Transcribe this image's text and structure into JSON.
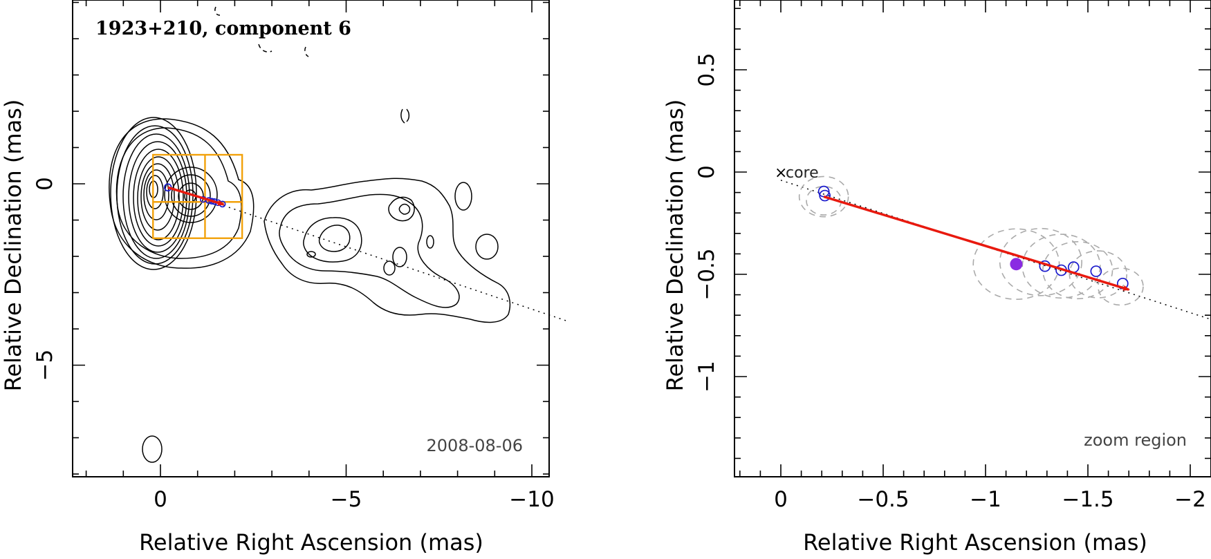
{
  "chart_data": [
    {
      "type": "scatter",
      "panel": "left",
      "title": "1923+210, component 6",
      "date_label": "2008-08-06",
      "xlabel": "Relative Right Ascension (mas)",
      "ylabel": "Relative Declination (mas)",
      "xlim": [
        2,
        -11
      ],
      "ylim": [
        -8,
        5
      ],
      "xticks": [
        0,
        -5,
        -10
      ],
      "xtick_labels": [
        "0",
        "−5",
        "−10"
      ],
      "yticks": [
        0,
        -5
      ],
      "ytick_labels": [
        "0",
        "−5"
      ],
      "contours": "radio intensity contours (core and jet extending to the west)",
      "core_position": [
        -0.2,
        -0.1
      ],
      "motion_vector": {
        "from": [
          -0.2,
          -0.1
        ],
        "to": [
          -1.7,
          -0.57
        ]
      },
      "component_positions": [
        [
          -1.15,
          -0.43
        ],
        [
          -1.3,
          -0.46
        ],
        [
          -1.38,
          -0.48
        ],
        [
          -1.45,
          -0.49
        ],
        [
          -1.55,
          -0.52
        ],
        [
          -1.67,
          -0.56
        ]
      ],
      "zoom_region_grid": {
        "x": [
          0.2,
          -1.2,
          -2.2
        ],
        "y": [
          0.8,
          -0.5,
          -1.5
        ]
      }
    },
    {
      "type": "scatter",
      "panel": "right",
      "annotation": "zoom region",
      "core_label": "core",
      "xlabel": "Relative Right Ascension (mas)",
      "ylabel": "Relative Declination (mas)",
      "xlim": [
        0.25,
        -2.1
      ],
      "ylim": [
        -1.5,
        0.85
      ],
      "xticks": [
        0,
        -0.5,
        -1,
        -1.5,
        -2
      ],
      "xtick_labels": [
        "0",
        "−0.5",
        "−1",
        "−1.5",
        "−2"
      ],
      "yticks": [
        0.5,
        0,
        -0.5,
        -1
      ],
      "ytick_labels": [
        "0.5",
        "0",
        "−0.5",
        "−1"
      ],
      "core": {
        "x": 0,
        "y": 0
      },
      "component_positions": [
        {
          "x": -0.215,
          "y": -0.115
        },
        {
          "x": -0.21,
          "y": -0.095
        },
        {
          "x": -1.29,
          "y": -0.46
        },
        {
          "x": -1.37,
          "y": -0.48
        },
        {
          "x": -1.43,
          "y": -0.465
        },
        {
          "x": -1.54,
          "y": -0.485
        },
        {
          "x": -1.67,
          "y": -0.545
        }
      ],
      "highlighted_epoch": {
        "x": -1.15,
        "y": -0.45,
        "color": "#8a2be2"
      },
      "fit_circles": [
        {
          "x": -0.21,
          "y": -0.12,
          "r": 0.12
        },
        {
          "x": -0.21,
          "y": -0.14,
          "r": 0.085
        },
        {
          "x": -1.15,
          "y": -0.45,
          "r": 0.21
        },
        {
          "x": -1.27,
          "y": -0.44,
          "r": 0.2
        },
        {
          "x": -1.37,
          "y": -0.46,
          "r": 0.19
        },
        {
          "x": -1.45,
          "y": -0.48,
          "r": 0.17
        },
        {
          "x": -1.55,
          "y": -0.5,
          "r": 0.14
        },
        {
          "x": -1.66,
          "y": -0.56,
          "r": 0.11
        }
      ],
      "motion_vector": {
        "from": [
          -0.21,
          -0.12
        ],
        "to": [
          -1.7,
          -0.575
        ]
      },
      "trajectory_line": {
        "from": [
          0,
          -0.04
        ],
        "to": [
          -2.1,
          -0.72
        ]
      }
    }
  ],
  "colors": {
    "vector": "#e8190e",
    "markers": "#1a1acc",
    "grid_box": "#f2a10a",
    "circles": "#aaaaaa"
  }
}
